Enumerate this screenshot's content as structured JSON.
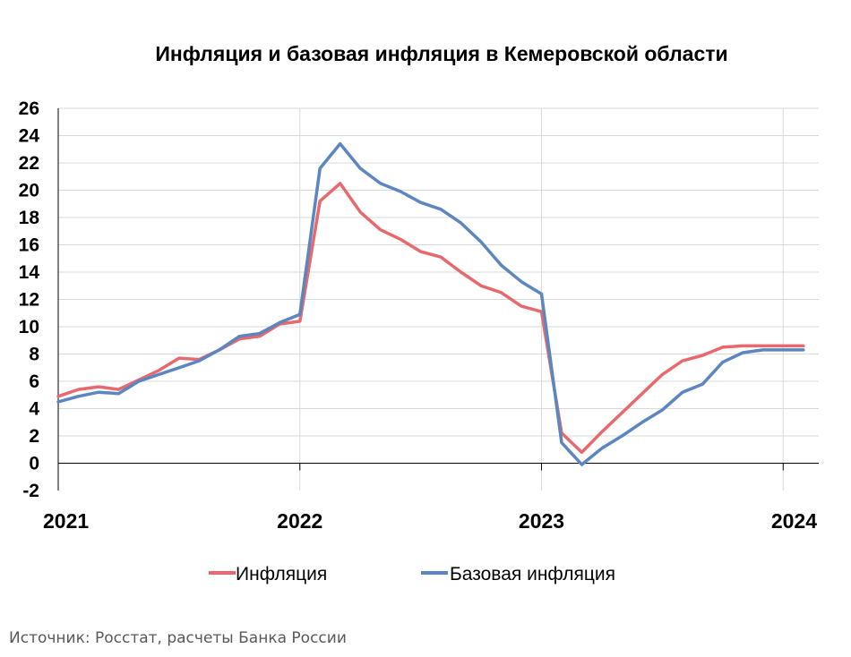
{
  "colors": {
    "inflation": "#e8696d",
    "core_inflation": "#5b86c0",
    "grid": "#d9d9d9",
    "axis": "#000000",
    "source_text": "#595959"
  },
  "legend": {
    "inflation_label": "Инфляция",
    "core_label": "Базовая инфляция"
  },
  "source": "Источник: Росстат, расчеты Банка России",
  "chart_data": {
    "type": "line",
    "title": "Инфляция и базовая инфляция в Кемеровской области",
    "xlabel": "",
    "ylabel": "",
    "ylim": [
      -2,
      26
    ],
    "yticks": [
      -2,
      0,
      2,
      4,
      6,
      8,
      10,
      12,
      14,
      16,
      18,
      20,
      22,
      24,
      26
    ],
    "xticks": [
      "2021",
      "2022",
      "2023",
      "2024"
    ],
    "grid": true,
    "legend_position": "bottom",
    "x": [
      "2021-01",
      "2021-02",
      "2021-03",
      "2021-04",
      "2021-05",
      "2021-06",
      "2021-07",
      "2021-08",
      "2021-09",
      "2021-10",
      "2021-11",
      "2021-12",
      "2022-01",
      "2022-02",
      "2022-03",
      "2022-04",
      "2022-05",
      "2022-06",
      "2022-07",
      "2022-08",
      "2022-09",
      "2022-10",
      "2022-11",
      "2022-12",
      "2023-01",
      "2023-02",
      "2023-03",
      "2023-04",
      "2023-05",
      "2023-06",
      "2023-07",
      "2023-08",
      "2023-09",
      "2023-10",
      "2023-11",
      "2023-12",
      "2024-01",
      "2024-02"
    ],
    "series": [
      {
        "name": "Инфляция",
        "values": [
          4.9,
          5.4,
          5.6,
          5.4,
          6.1,
          6.8,
          7.7,
          7.6,
          8.3,
          9.1,
          9.3,
          10.2,
          10.4,
          19.2,
          20.5,
          18.4,
          17.1,
          16.4,
          15.5,
          15.1,
          14.0,
          13.0,
          12.5,
          11.5,
          11.1,
          2.2,
          0.8,
          2.3,
          3.7,
          5.1,
          6.5,
          7.5,
          7.9,
          8.5,
          8.6,
          8.6,
          8.6,
          8.6
        ]
      },
      {
        "name": "Базовая инфляция",
        "values": [
          4.5,
          4.9,
          5.2,
          5.1,
          6.0,
          6.5,
          7.0,
          7.5,
          8.3,
          9.3,
          9.5,
          10.3,
          10.9,
          21.6,
          23.4,
          21.6,
          20.5,
          19.9,
          19.1,
          18.6,
          17.6,
          16.2,
          14.5,
          13.3,
          12.4,
          1.5,
          -0.1,
          1.1,
          2.0,
          3.0,
          3.9,
          5.2,
          5.8,
          7.4,
          8.1,
          8.3,
          8.3,
          8.3
        ]
      }
    ]
  }
}
